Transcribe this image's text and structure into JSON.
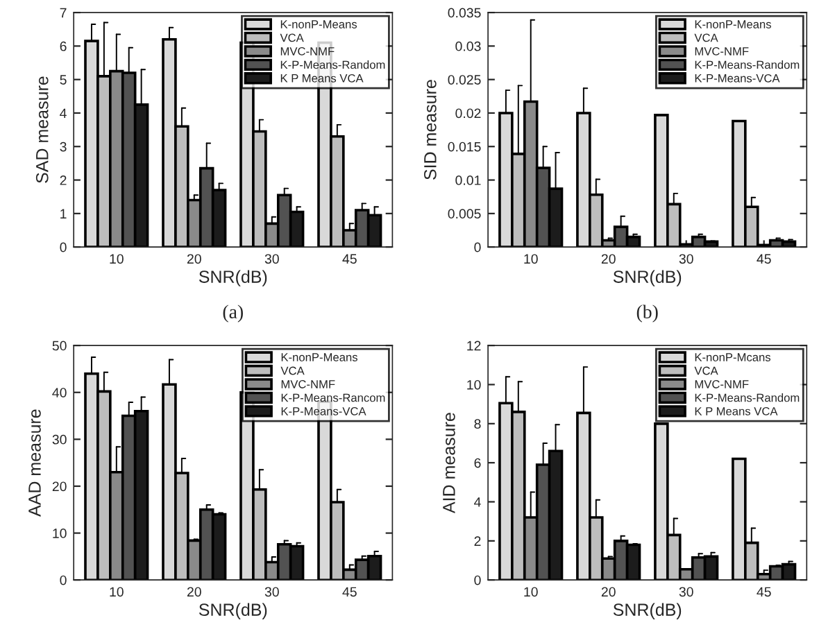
{
  "chart_data": [
    {
      "type": "bar",
      "xlabel": "SNR(dB)",
      "ylabel": "SAD measure",
      "annotations": [
        "(a)"
      ],
      "categories": [
        "10",
        "20",
        "30",
        "45"
      ],
      "ylim": [
        0,
        7
      ],
      "yticks": [
        0,
        1,
        2,
        3,
        4,
        5,
        6,
        7
      ],
      "legend": "top right",
      "series": [
        {
          "name": "K-nonP-Means",
          "color": "#d9d9d9",
          "values": [
            6.15,
            6.2,
            6.1,
            6.1
          ],
          "errors": [
            [
              6.15,
              6.65
            ],
            [
              6.2,
              6.55
            ],
            null,
            null
          ]
        },
        {
          "name": "VCA",
          "color": "#bdbdbd",
          "values": [
            5.1,
            3.6,
            3.45,
            3.3
          ],
          "errors": [
            [
              5.1,
              6.7
            ],
            [
              3.6,
              4.15
            ],
            [
              3.45,
              3.8
            ],
            [
              3.3,
              3.65
            ]
          ]
        },
        {
          "name": "MVC-NMF",
          "color": "#8a8a8a",
          "values": [
            5.25,
            1.4,
            0.7,
            0.5
          ],
          "errors": [
            [
              5.25,
              6.35
            ],
            [
              1.4,
              1.55
            ],
            [
              0.7,
              0.9
            ],
            [
              0.5,
              0.7
            ]
          ]
        },
        {
          "name": "K-P-Means-Random",
          "color": "#525252",
          "values": [
            5.2,
            2.35,
            1.55,
            1.1
          ],
          "errors": [
            [
              5.2,
              5.95
            ],
            [
              2.35,
              3.1
            ],
            [
              1.55,
              1.75
            ],
            [
              1.1,
              1.3
            ]
          ]
        },
        {
          "name": "K P Means VCA",
          "color": "#1c1c1c",
          "values": [
            4.25,
            1.7,
            1.05,
            0.95
          ],
          "errors": [
            [
              4.25,
              5.3
            ],
            [
              1.7,
              1.9
            ],
            [
              1.05,
              1.2
            ],
            [
              0.95,
              1.2
            ]
          ]
        }
      ]
    },
    {
      "type": "bar",
      "xlabel": "SNR(dB)",
      "ylabel": "SID measure",
      "annotations": [
        "(b)"
      ],
      "categories": [
        "10",
        "20",
        "30",
        "45"
      ],
      "ylim": [
        0,
        0.035
      ],
      "yticks": [
        0,
        0.005,
        0.01,
        0.015,
        0.02,
        0.025,
        0.03,
        0.035
      ],
      "legend": "top right",
      "series": [
        {
          "name": "K-nonP-Means",
          "color": "#d9d9d9",
          "values": [
            0.02,
            0.02,
            0.0197,
            0.0188
          ],
          "errors": [
            [
              0.02,
              0.0234
            ],
            [
              0.02,
              0.0237
            ],
            null,
            null
          ]
        },
        {
          "name": "VCA",
          "color": "#bdbdbd",
          "values": [
            0.0139,
            0.0078,
            0.0064,
            0.006
          ],
          "errors": [
            [
              0.0139,
              0.0241
            ],
            [
              0.0078,
              0.0101
            ],
            [
              0.0064,
              0.008
            ],
            [
              0.006,
              0.0074
            ]
          ]
        },
        {
          "name": "MVC-NMF",
          "color": "#8a8a8a",
          "values": [
            0.0217,
            0.001,
            0.0004,
            0.0003
          ],
          "errors": [
            [
              0.0217,
              0.0339
            ],
            [
              0.001,
              0.0013
            ],
            null,
            null
          ]
        },
        {
          "name": "K-P-Means-Random",
          "color": "#525252",
          "values": [
            0.0118,
            0.003,
            0.0015,
            0.001
          ],
          "errors": [
            [
              0.0118,
              0.015
            ],
            [
              0.003,
              0.0046
            ],
            [
              0.0015,
              0.0019
            ],
            [
              0.001,
              0.0013
            ]
          ]
        },
        {
          "name": "K-P-Means-VCA",
          "color": "#1c1c1c",
          "values": [
            0.0087,
            0.0015,
            0.0008,
            0.0008
          ],
          "errors": [
            [
              0.0087,
              0.0141
            ],
            [
              0.0015,
              0.0019
            ],
            [
              0.0008,
              0.0009
            ],
            [
              0.0008,
              0.0011
            ]
          ]
        }
      ]
    },
    {
      "type": "bar",
      "xlabel": "SNR(dB)",
      "ylabel": "AAD measure",
      "categories": [
        "10",
        "20",
        "30",
        "45"
      ],
      "ylim": [
        0,
        50
      ],
      "yticks": [
        0,
        10,
        20,
        30,
        40,
        50
      ],
      "legend": "top right",
      "series": [
        {
          "name": "K-nonP-Means",
          "color": "#d9d9d9",
          "values": [
            44,
            41.7,
            40,
            38
          ],
          "errors": [
            [
              44,
              47.5
            ],
            [
              41.7,
              47
            ],
            null,
            null
          ]
        },
        {
          "name": "VCA",
          "color": "#bdbdbd",
          "values": [
            40.2,
            22.8,
            19.3,
            16.6
          ],
          "errors": [
            [
              40.2,
              44.3
            ],
            [
              22.8,
              25.9
            ],
            [
              19.3,
              23.5
            ],
            [
              16.6,
              19.3
            ]
          ]
        },
        {
          "name": "MVC-NMF",
          "color": "#8a8a8a",
          "values": [
            23,
            8.4,
            3.8,
            2.2
          ],
          "errors": [
            [
              23,
              28.4
            ],
            [
              8.4,
              8.7
            ],
            [
              3.8,
              4.9
            ],
            [
              2.2,
              3.2
            ]
          ]
        },
        {
          "name": "K-P-Means-Rancom",
          "color": "#525252",
          "values": [
            35,
            15,
            7.6,
            4.3
          ],
          "errors": [
            [
              35,
              37.9
            ],
            [
              15,
              16
            ],
            [
              7.6,
              8.4
            ],
            [
              4.3,
              5.1
            ]
          ]
        },
        {
          "name": "K-P-Means-VCA",
          "color": "#1c1c1c",
          "values": [
            36,
            14,
            7.2,
            5.1
          ],
          "errors": [
            [
              36,
              39
            ],
            [
              14,
              14.3
            ],
            [
              7.2,
              7.9
            ],
            [
              5.1,
              6.1
            ]
          ]
        }
      ]
    },
    {
      "type": "bar",
      "xlabel": "SNR(dB)",
      "ylabel": "AID measure",
      "categories": [
        "10",
        "20",
        "30",
        "45"
      ],
      "ylim": [
        0,
        12
      ],
      "yticks": [
        0,
        2,
        4,
        6,
        8,
        10,
        12
      ],
      "legend": "top right",
      "series": [
        {
          "name": "K-nonP-Mcans",
          "color": "#d9d9d9",
          "values": [
            9.05,
            8.55,
            8.0,
            6.2
          ],
          "errors": [
            [
              9.05,
              10.4
            ],
            [
              8.55,
              10.9
            ],
            null,
            null
          ]
        },
        {
          "name": "VCA",
          "color": "#bdbdbd",
          "values": [
            8.6,
            3.2,
            2.3,
            1.9
          ],
          "errors": [
            [
              8.6,
              10.15
            ],
            [
              3.2,
              4.1
            ],
            [
              2.3,
              3.15
            ],
            [
              1.9,
              2.65
            ]
          ]
        },
        {
          "name": "MVC-NMF",
          "color": "#8a8a8a",
          "values": [
            3.2,
            1.1,
            0.55,
            0.3
          ],
          "errors": [
            [
              3.2,
              4.5
            ],
            [
              1.1,
              1.2
            ],
            null,
            [
              0.3,
              0.5
            ]
          ]
        },
        {
          "name": "K-P-Means-Random",
          "color": "#525252",
          "values": [
            5.9,
            2.0,
            1.15,
            0.7
          ],
          "errors": [
            [
              5.9,
              7.0
            ],
            [
              2.0,
              2.25
            ],
            [
              1.15,
              1.35
            ],
            [
              0.7,
              0.75
            ]
          ]
        },
        {
          "name": "K P Means VCA",
          "color": "#1c1c1c",
          "values": [
            6.6,
            1.8,
            1.2,
            0.8
          ],
          "errors": [
            [
              6.6,
              7.95
            ],
            [
              1.8,
              1.85
            ],
            [
              1.2,
              1.4
            ],
            [
              0.8,
              0.95
            ]
          ]
        }
      ]
    }
  ]
}
